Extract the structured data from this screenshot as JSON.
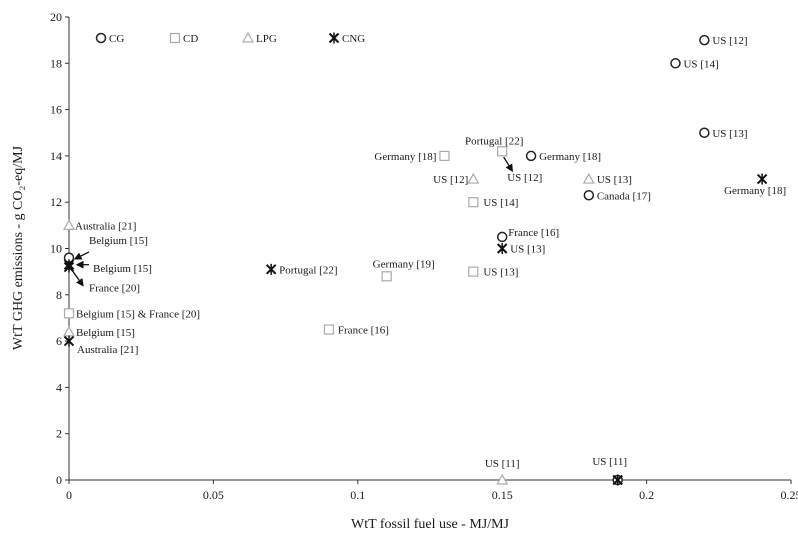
{
  "chart_data": {
    "type": "scatter",
    "xlabel": "WtT fossil fuel use - MJ/MJ",
    "ylabel": "WtT GHG emissions - g CO₂-eq/MJ",
    "xlim": [
      0,
      0.25
    ],
    "ylim": [
      0,
      20
    ],
    "x_ticks": [
      {
        "value": 0,
        "label": "0"
      },
      {
        "value": 0.05,
        "label": "0.05"
      },
      {
        "value": 0.1,
        "label": "0.1"
      },
      {
        "value": 0.15,
        "label": "0.15"
      },
      {
        "value": 0.2,
        "label": "0.2"
      },
      {
        "value": 0.25,
        "label": "0.25"
      }
    ],
    "y_ticks": [
      {
        "value": 0,
        "label": "0"
      },
      {
        "value": 2,
        "label": "2"
      },
      {
        "value": 4,
        "label": "4"
      },
      {
        "value": 6,
        "label": "6"
      },
      {
        "value": 8,
        "label": "8"
      },
      {
        "value": 10,
        "label": "10"
      },
      {
        "value": 12,
        "label": "12"
      },
      {
        "value": 14,
        "label": "14"
      },
      {
        "value": 16,
        "label": "16"
      },
      {
        "value": 18,
        "label": "18"
      },
      {
        "value": 20,
        "label": "20"
      }
    ],
    "grid": false,
    "legend_position": "top",
    "series": [
      {
        "name": "CG",
        "marker": "circle",
        "points": [
          {
            "x": 0.22,
            "y": 19.0,
            "label": "US [12]"
          },
          {
            "x": 0.21,
            "y": 18.0,
            "label": "US [14]"
          },
          {
            "x": 0.22,
            "y": 15.0,
            "label": "US [13]"
          },
          {
            "x": 0.16,
            "y": 14.0,
            "label": "Germany [18]"
          },
          {
            "x": 0.18,
            "y": 12.3,
            "label": "Canada [17]"
          },
          {
            "x": 0.15,
            "y": 10.5,
            "label": "France [16]"
          },
          {
            "x": 0.0,
            "y": 9.6,
            "label": "Belgium [15]"
          },
          {
            "x": 0.19,
            "y": 0.0,
            "label": "US [11]"
          }
        ]
      },
      {
        "name": "CD",
        "marker": "square",
        "points": [
          {
            "x": 0.15,
            "y": 14.2,
            "label": "Portugal [22]"
          },
          {
            "x": 0.13,
            "y": 14.0,
            "label": "Germany [18]"
          },
          {
            "x": 0.14,
            "y": 12.0,
            "label": "US [14]"
          },
          {
            "x": 0.14,
            "y": 9.0,
            "label": "US [13]"
          },
          {
            "x": 0.11,
            "y": 8.8,
            "label": "Germany [19]"
          },
          {
            "x": 0.09,
            "y": 6.5,
            "label": "France [16]"
          },
          {
            "x": 0.0,
            "y": 7.2,
            "label": "Belgium [15] & France [20]"
          }
        ]
      },
      {
        "name": "LPG",
        "marker": "triangle",
        "points": [
          {
            "x": 0.14,
            "y": 13.0,
            "label": "US [12]"
          },
          {
            "x": 0.18,
            "y": 13.0,
            "label": "US [13]"
          },
          {
            "x": 0.0,
            "y": 11.0,
            "label": "Australia [21]"
          },
          {
            "x": 0.0,
            "y": 6.4,
            "label": "Belgium [15]"
          },
          {
            "x": 0.15,
            "y": 0.0,
            "label": "US [11]"
          }
        ]
      },
      {
        "name": "CNG",
        "marker": "star",
        "points": [
          {
            "x": 0.24,
            "y": 13.0,
            "label": "Germany [18]"
          },
          {
            "x": 0.15,
            "y": 10.0,
            "label": "US [13]"
          },
          {
            "x": 0.07,
            "y": 9.1,
            "label": "Portugal [22]"
          },
          {
            "x": 0.0,
            "y": 9.2,
            "label": "Belgium [15]"
          },
          {
            "x": 0.0,
            "y": 9.3,
            "label": "France [20]"
          },
          {
            "x": 0.0,
            "y": 6.0,
            "label": "Australia [21]"
          },
          {
            "x": 0.19,
            "y": 0.0,
            "label": ""
          }
        ]
      }
    ],
    "annotations": [
      {
        "text": "US [12]",
        "series": "CNG",
        "x": 0.15,
        "y": 13.0
      }
    ]
  }
}
